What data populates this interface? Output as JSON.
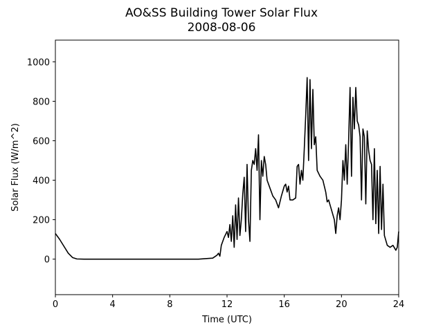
{
  "chart_data": {
    "type": "line",
    "title": "AO&SS Building Tower Solar Flux",
    "subtitle": "2008-08-06",
    "x_label": "Time (UTC)",
    "y_label": "Solar Flux (W/m^2)",
    "xlim": [
      0,
      24
    ],
    "xticks": [
      0,
      4,
      8,
      12,
      16,
      20,
      24
    ],
    "ylim": [
      -180,
      1110
    ],
    "yticks": [
      0,
      200,
      400,
      600,
      800,
      1000
    ],
    "series": [
      {
        "color": "#000000",
        "x": [
          0,
          0.3,
          0.6,
          0.9,
          1.2,
          1.5,
          2,
          4,
          6,
          8,
          10,
          11,
          11.3,
          11.4,
          11.5,
          11.6,
          11.8,
          12.0,
          12.1,
          12.2,
          12.3,
          12.4,
          12.5,
          12.6,
          12.7,
          12.8,
          12.9,
          13.0,
          13.1,
          13.2,
          13.3,
          13.4,
          13.5,
          13.6,
          13.7,
          13.8,
          13.9,
          14.0,
          14.1,
          14.2,
          14.3,
          14.4,
          14.5,
          14.6,
          14.7,
          14.8,
          15.0,
          15.2,
          15.4,
          15.6,
          15.8,
          16.0,
          16.1,
          16.2,
          16.3,
          16.4,
          16.6,
          16.8,
          16.9,
          17.0,
          17.1,
          17.2,
          17.3,
          17.4,
          17.5,
          17.6,
          17.7,
          17.8,
          17.9,
          18.0,
          18.1,
          18.2,
          18.3,
          18.5,
          18.7,
          18.9,
          19.0,
          19.1,
          19.3,
          19.5,
          19.6,
          19.7,
          19.8,
          19.9,
          20.0,
          20.1,
          20.2,
          20.3,
          20.4,
          20.5,
          20.6,
          20.7,
          20.8,
          20.9,
          21.0,
          21.1,
          21.2,
          21.3,
          21.4,
          21.5,
          21.6,
          21.7,
          21.8,
          21.9,
          22.0,
          22.1,
          22.2,
          22.3,
          22.4,
          22.5,
          22.6,
          22.7,
          22.8,
          22.9,
          23.0,
          23.2,
          23.4,
          23.6,
          23.8,
          23.9,
          24.0
        ],
        "values": [
          130,
          100,
          65,
          30,
          8,
          1,
          0,
          0,
          0,
          0,
          0,
          5,
          20,
          30,
          15,
          70,
          110,
          140,
          110,
          175,
          90,
          220,
          60,
          275,
          100,
          310,
          120,
          200,
          330,
          415,
          140,
          480,
          200,
          90,
          450,
          500,
          480,
          560,
          450,
          630,
          200,
          500,
          420,
          520,
          480,
          400,
          360,
          320,
          300,
          260,
          320,
          370,
          380,
          340,
          370,
          300,
          300,
          310,
          470,
          480,
          380,
          450,
          400,
          560,
          730,
          920,
          500,
          910,
          560,
          860,
          580,
          620,
          450,
          420,
          400,
          340,
          290,
          300,
          250,
          200,
          130,
          220,
          260,
          200,
          300,
          500,
          400,
          580,
          380,
          600,
          870,
          420,
          820,
          660,
          870,
          700,
          680,
          620,
          300,
          660,
          620,
          280,
          650,
          550,
          500,
          480,
          200,
          560,
          180,
          450,
          130,
          470,
          150,
          380,
          120,
          70,
          60,
          70,
          45,
          60,
          140
        ]
      }
    ]
  }
}
